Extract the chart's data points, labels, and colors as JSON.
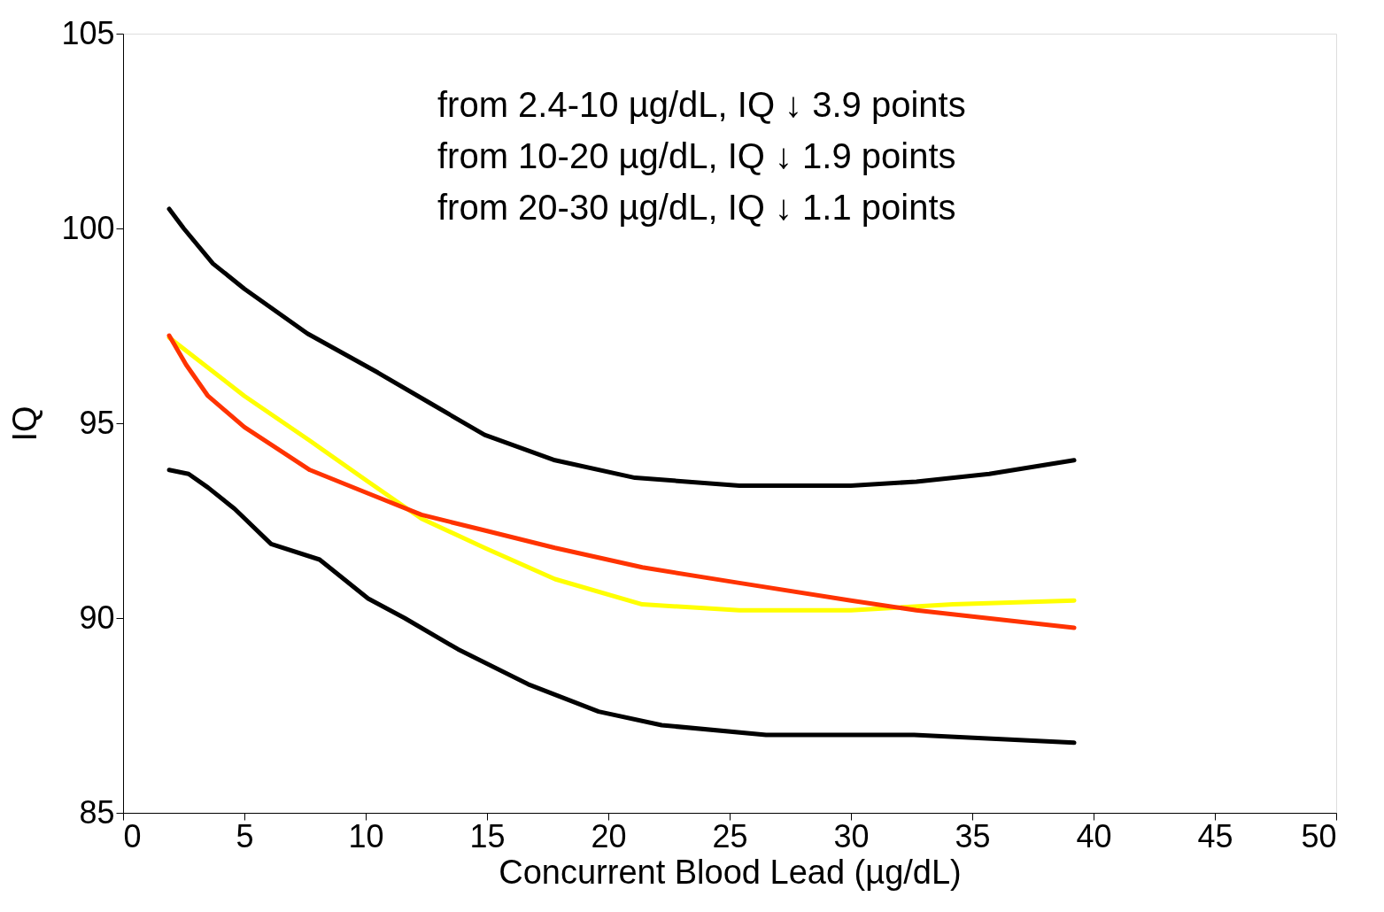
{
  "chart_data": {
    "type": "line",
    "xlabel": "Concurrent Blood Lead (µg/dL)",
    "ylabel": "IQ",
    "xlim": [
      0,
      50
    ],
    "xticks": [
      0,
      5,
      10,
      15,
      20,
      25,
      30,
      35,
      40,
      45,
      50
    ],
    "ylim": [
      85,
      105
    ],
    "yticks": [
      85,
      90,
      95,
      100,
      105
    ],
    "grid": false,
    "marker": "none",
    "line_style": "solid",
    "annotations": [
      "from 2.4-10 µg/dL, IQ ↓ 3.9 points",
      "from 10-20 µg/dL, IQ ↓ 1.9 points",
      "from 20-30 µg/dL, IQ ↓ 1.1 points"
    ],
    "series": [
      {
        "color": "#000000",
        "x": [
          1.9,
          2.5,
          3.7,
          5.0,
          7.6,
          10.5,
          12.7,
          14.9,
          17.8,
          21.1,
          25.4,
          30,
          32.7,
          35.7,
          39.2
        ],
        "values": [
          100.5,
          100.0,
          99.1,
          98.45,
          97.3,
          96.3,
          95.5,
          94.7,
          94.05,
          93.6,
          93.4,
          93.4,
          93.5,
          93.7,
          94.05
        ]
      },
      {
        "color": "#000000",
        "x": [
          1.9,
          2.7,
          3.5,
          4.6,
          6.1,
          8.1,
          10.1,
          11.6,
          13.8,
          16.7,
          19.6,
          22.2,
          26.5,
          32.6,
          39.2
        ],
        "values": [
          93.8,
          93.7,
          93.35,
          92.8,
          91.9,
          91.5,
          90.5,
          90.0,
          89.2,
          88.3,
          87.6,
          87.25,
          87.0,
          87.0,
          86.8
        ]
      },
      {
        "color": "#ffff00",
        "x": [
          1.9,
          5.0,
          7.7,
          10.1,
          12.3,
          14.9,
          17.8,
          21.4,
          25.4,
          30,
          34.2,
          39.2
        ],
        "values": [
          97.2,
          95.7,
          94.55,
          93.5,
          92.55,
          91.8,
          91.0,
          90.35,
          90.2,
          90.2,
          90.35,
          90.45
        ]
      },
      {
        "color": "#ff3300",
        "x": [
          1.9,
          2.6,
          3.5,
          5.0,
          7.7,
          10.1,
          12.3,
          14.9,
          17.8,
          21.4,
          25.4,
          30,
          32.7,
          39.2
        ],
        "values": [
          97.25,
          96.5,
          95.7,
          94.9,
          93.8,
          93.2,
          92.65,
          92.25,
          91.8,
          91.3,
          90.9,
          90.45,
          90.2,
          89.75
        ]
      }
    ]
  }
}
